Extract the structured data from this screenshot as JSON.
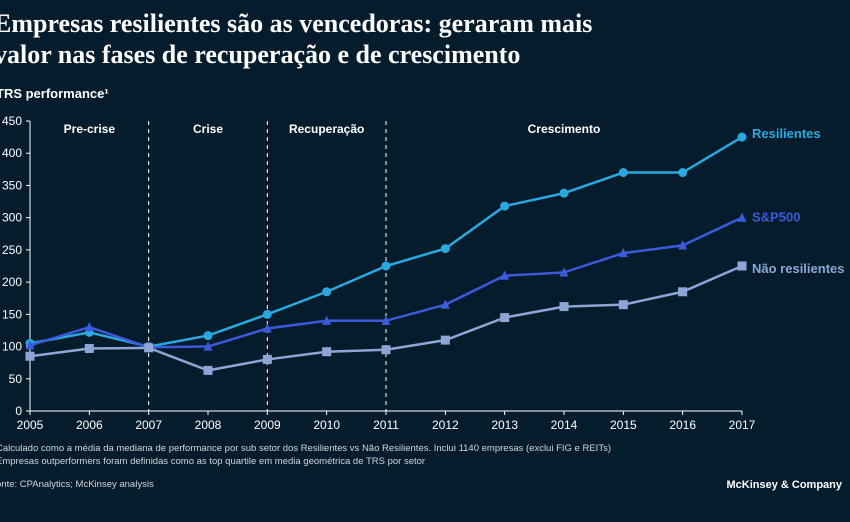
{
  "title_line1": "Empresas resilientes são as vencedoras: geraram mais",
  "title_line2": "valor nas fases de recuperação e de crescimento",
  "subtitle": "TRS performance¹",
  "footnote1": "Calculado como a média da mediana de performance por sub setor dos Resilientes vs Não Resilientes. Inclui 1140 empresas (exclui FIG e REITs)",
  "footnote2": "Empresas outperformers foram definidas como as top quartile em media geométrica de TRS por setor",
  "source": "onte: CPAnalytics; McKinsey analysis",
  "brand": "McKinsey & Company",
  "chart": {
    "type": "line",
    "background_color": "#051c2c",
    "xlim": [
      2005,
      2017
    ],
    "ylim": [
      0,
      450
    ],
    "ytick_step": 50,
    "yticks": [
      0,
      50,
      100,
      150,
      200,
      250,
      300,
      350,
      400,
      450
    ],
    "xticks": [
      2005,
      2006,
      2007,
      2008,
      2009,
      2010,
      2011,
      2012,
      2013,
      2014,
      2015,
      2016,
      2017
    ],
    "axis_color": "#ffffff",
    "axis_fontsize": 12,
    "line_width": 2.5,
    "marker_size": 4.5,
    "phases": [
      {
        "label": "Pre-crise",
        "from": 2005,
        "to": 2007
      },
      {
        "label": "Crise",
        "from": 2007,
        "to": 2009
      },
      {
        "label": "Recuperação",
        "from": 2009,
        "to": 2011
      },
      {
        "label": "Crescimento",
        "from": 2011,
        "to": 2017
      }
    ],
    "phase_dividers": [
      2007,
      2009,
      2011
    ],
    "series": [
      {
        "name": "Resilientes",
        "color": "#2aa9e0",
        "marker": "circle",
        "label_y_offset": -3,
        "data": [
          {
            "x": 2005,
            "y": 105
          },
          {
            "x": 2006,
            "y": 122
          },
          {
            "x": 2007,
            "y": 100
          },
          {
            "x": 2008,
            "y": 117
          },
          {
            "x": 2009,
            "y": 150
          },
          {
            "x": 2010,
            "y": 185
          },
          {
            "x": 2011,
            "y": 225
          },
          {
            "x": 2012,
            "y": 252
          },
          {
            "x": 2013,
            "y": 318
          },
          {
            "x": 2014,
            "y": 338
          },
          {
            "x": 2015,
            "y": 370
          },
          {
            "x": 2016,
            "y": 370
          },
          {
            "x": 2017,
            "y": 425
          }
        ]
      },
      {
        "name": "S&P500",
        "color": "#3b5bdb",
        "marker": "triangle",
        "label_y_offset": 0,
        "data": [
          {
            "x": 2005,
            "y": 102
          },
          {
            "x": 2006,
            "y": 130
          },
          {
            "x": 2007,
            "y": 99
          },
          {
            "x": 2008,
            "y": 100
          },
          {
            "x": 2009,
            "y": 128
          },
          {
            "x": 2010,
            "y": 140
          },
          {
            "x": 2011,
            "y": 140
          },
          {
            "x": 2012,
            "y": 165
          },
          {
            "x": 2013,
            "y": 210
          },
          {
            "x": 2014,
            "y": 215
          },
          {
            "x": 2015,
            "y": 245
          },
          {
            "x": 2016,
            "y": 257
          },
          {
            "x": 2017,
            "y": 300
          }
        ]
      },
      {
        "name": "Não resilientes",
        "color": "#8ea6d6",
        "marker": "square",
        "label_y_offset": 3,
        "data": [
          {
            "x": 2005,
            "y": 85
          },
          {
            "x": 2006,
            "y": 97
          },
          {
            "x": 2007,
            "y": 98
          },
          {
            "x": 2008,
            "y": 63
          },
          {
            "x": 2009,
            "y": 80
          },
          {
            "x": 2010,
            "y": 92
          },
          {
            "x": 2011,
            "y": 95
          },
          {
            "x": 2012,
            "y": 110
          },
          {
            "x": 2013,
            "y": 145
          },
          {
            "x": 2014,
            "y": 162
          },
          {
            "x": 2015,
            "y": 165
          },
          {
            "x": 2016,
            "y": 185
          },
          {
            "x": 2017,
            "y": 225
          }
        ]
      }
    ]
  }
}
